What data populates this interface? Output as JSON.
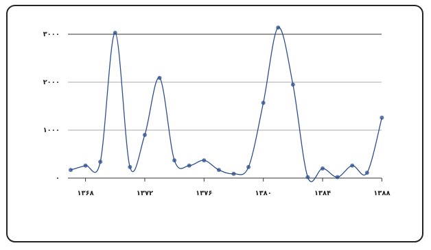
{
  "chart_data": {
    "type": "line",
    "x": [
      1367,
      1368,
      1369,
      1370,
      1371,
      1372,
      1373,
      1374,
      1375,
      1376,
      1377,
      1378,
      1379,
      1380,
      1381,
      1382,
      1383,
      1384,
      1385,
      1386,
      1387,
      1388
    ],
    "series": [
      {
        "color": "#2b4f8c",
        "values": [
          170,
          260,
          340,
          3030,
          230,
          900,
          2090,
          370,
          260,
          370,
          170,
          90,
          230,
          1570,
          3140,
          1950,
          20,
          200,
          20,
          260,
          110,
          1260
        ]
      }
    ],
    "xlim": [
      1367,
      1389
    ],
    "xticks": [
      {
        "value": 1368,
        "label": "۱۳۶۸"
      },
      {
        "value": 1372,
        "label": "۱۳۷۲"
      },
      {
        "value": 1376,
        "label": "۱۳۷۶"
      },
      {
        "value": 1380,
        "label": "۱۳۸۰"
      },
      {
        "value": 1384,
        "label": "۱۳۸۴"
      },
      {
        "value": 1388,
        "label": "۱۳۸۸"
      }
    ],
    "ylim": [
      0,
      3000
    ],
    "yticks": [
      {
        "value": 0,
        "label": "۰"
      },
      {
        "value": 1000,
        "label": "۱۰۰۰"
      },
      {
        "value": 2000,
        "label": "۲۰۰۰"
      },
      {
        "value": 3000,
        "label": "۳۰۰۰"
      }
    ],
    "grid": true
  }
}
